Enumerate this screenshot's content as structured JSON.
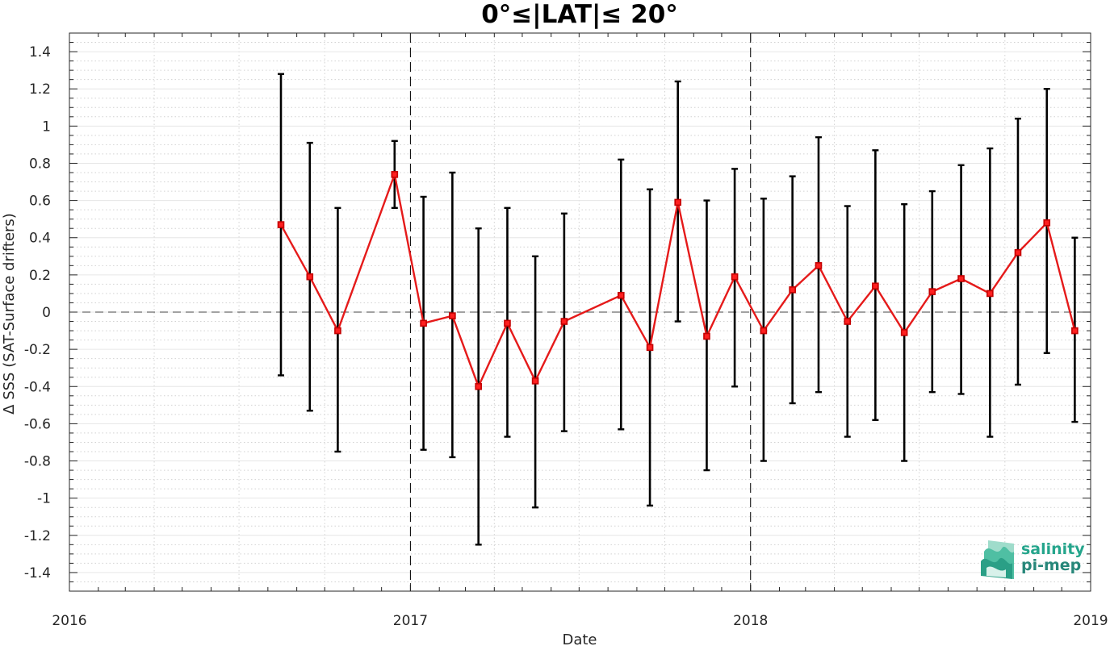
{
  "chart_data": {
    "type": "line",
    "title": "0°≤|LAT|≤ 20°",
    "xlabel": "Date",
    "ylabel": "Δ SSS (SAT-Surface drifters)",
    "xlim": [
      "2016-01-01",
      "2019-01-01"
    ],
    "ylim": [
      -1.5,
      1.5
    ],
    "x_ticks": [
      "2016",
      "2017",
      "2018",
      "2019"
    ],
    "y_ticks": [
      -1.4,
      -1.2,
      -1,
      -0.8,
      -0.6,
      -0.4,
      -0.2,
      0,
      0.2,
      0.4,
      0.6,
      0.8,
      1,
      1.2,
      1.4
    ],
    "grid": true,
    "zero_line": true,
    "year_lines": [
      "2017-01-01",
      "2018-01-01"
    ],
    "line_color": "#e51a1a",
    "errorbar_color": "#000000",
    "series": [
      {
        "x": [
          "2016-08-15",
          "2016-09-15",
          "2016-10-15",
          "2016-12-15",
          "2017-01-15",
          "2017-02-15",
          "2017-03-15",
          "2017-04-15",
          "2017-05-15",
          "2017-06-15",
          "2017-08-15",
          "2017-09-15",
          "2017-10-15",
          "2017-11-15",
          "2017-12-15",
          "2018-01-15",
          "2018-02-15",
          "2018-03-15",
          "2018-04-15",
          "2018-05-15",
          "2018-06-15",
          "2018-07-15",
          "2018-08-15",
          "2018-09-15",
          "2018-10-15",
          "2018-11-15",
          "2018-12-15"
        ],
        "values": [
          0.47,
          0.19,
          -0.1,
          0.74,
          -0.06,
          -0.02,
          -0.4,
          -0.06,
          -0.37,
          -0.05,
          0.09,
          -0.19,
          0.59,
          -0.13,
          0.19,
          -0.1,
          0.12,
          0.25,
          -0.05,
          0.14,
          -0.11,
          0.11,
          0.18,
          0.1,
          0.32,
          0.48,
          -0.1
        ],
        "err_low": [
          -0.34,
          -0.53,
          -0.75,
          0.56,
          -0.74,
          -0.78,
          -1.25,
          -0.67,
          -1.05,
          -0.64,
          -0.63,
          -1.04,
          -0.05,
          -0.85,
          -0.4,
          -0.8,
          -0.49,
          -0.43,
          -0.67,
          -0.58,
          -0.8,
          -0.43,
          -0.44,
          -0.67,
          -0.39,
          -0.22,
          -0.59
        ],
        "err_high": [
          1.28,
          0.91,
          0.56,
          0.92,
          0.62,
          0.75,
          0.45,
          0.56,
          0.3,
          0.53,
          0.82,
          0.66,
          1.24,
          0.6,
          0.77,
          0.61,
          0.73,
          0.94,
          0.57,
          0.87,
          0.58,
          0.65,
          0.79,
          0.88,
          1.04,
          1.2,
          0.4
        ]
      }
    ]
  },
  "logo": {
    "line1": "salinity",
    "line2": "pi-mep"
  }
}
